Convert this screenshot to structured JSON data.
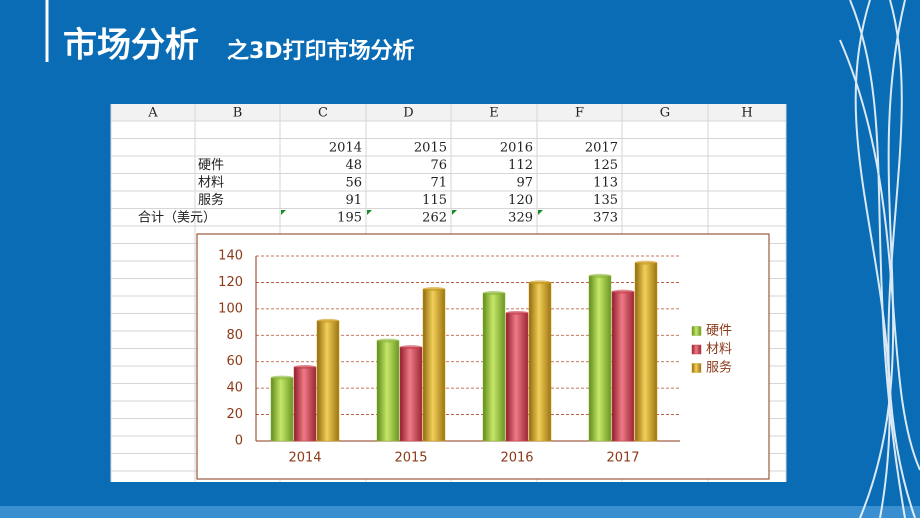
{
  "header": {
    "title": "市场分析",
    "subtitle": "之3D打印市场分析"
  },
  "table": {
    "columns": [
      "A",
      "B",
      "C",
      "D",
      "E",
      "F",
      "G",
      "H"
    ],
    "years": [
      2014,
      2015,
      2016,
      2017
    ],
    "rows": [
      {
        "label": "硬件",
        "values": [
          48,
          76,
          112,
          125
        ]
      },
      {
        "label": "材料",
        "values": [
          56,
          71,
          97,
          113
        ]
      },
      {
        "label": "服务",
        "values": [
          91,
          115,
          120,
          135
        ]
      }
    ],
    "total": {
      "label": "合计（美元）",
      "values": [
        195,
        262,
        329,
        373
      ]
    }
  },
  "chart_data": {
    "type": "bar",
    "categories": [
      "2014",
      "2015",
      "2016",
      "2017"
    ],
    "series": [
      {
        "name": "硬件",
        "color": "#8cb63a",
        "values": [
          48,
          76,
          112,
          125
        ]
      },
      {
        "name": "材料",
        "color": "#c8404f",
        "values": [
          56,
          71,
          97,
          113
        ]
      },
      {
        "name": "服务",
        "color": "#c99a1c",
        "values": [
          91,
          115,
          120,
          135
        ]
      }
    ],
    "ylim": [
      0,
      140
    ],
    "yticks": [
      0,
      20,
      40,
      60,
      80,
      100,
      120,
      140
    ],
    "grid": true,
    "legend": "right"
  }
}
